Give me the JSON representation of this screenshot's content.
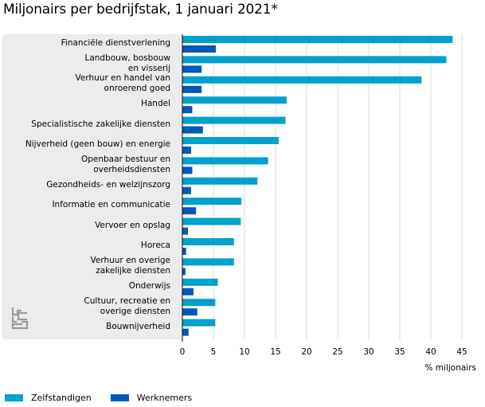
{
  "page": {
    "title": "Miljonairs per bedrijfstak, 1 januari 2021*"
  },
  "chart_data": {
    "type": "bar",
    "orientation": "horizontal",
    "title": "Miljonairs per bedrijfstak, 1 januari 2021*",
    "xlabel": "% miljonairs",
    "ylabel": "",
    "xlim": [
      0,
      45
    ],
    "x_ticks": [
      0,
      5,
      10,
      15,
      20,
      25,
      30,
      35,
      40,
      45
    ],
    "grid": true,
    "legend_position": "bottom-left",
    "categories": [
      "Financiële dienstverlening",
      "Landbouw, bosbouw\nen visserij",
      "Verhuur en handel van\nonroerend goed",
      "Handel",
      "Specialistische zakelijke diensten",
      "Nijverheid (geen bouw) en energie",
      "Openbaar bestuur en\noverheidsdiensten",
      "Gezondheids- en welzijnszorg",
      "Informatie en communicatie",
      "Vervoer en opslag",
      "Horeca",
      "Verhuur en overige\nzakelijke diensten",
      "Onderwijs",
      "Cultuur, recreatie en\noverige diensten",
      "Bouwnijverheid"
    ],
    "series": [
      {
        "name": "Zelfstandigen",
        "color": "#00a1cd",
        "values": [
          43.5,
          42.5,
          38.5,
          16.8,
          16.6,
          15.5,
          13.8,
          12.1,
          9.5,
          9.4,
          8.3,
          8.3,
          5.7,
          5.3,
          5.3
        ]
      },
      {
        "name": "Werknemers",
        "color": "#0058b8",
        "values": [
          5.4,
          3.1,
          3.1,
          1.6,
          3.3,
          1.4,
          1.6,
          1.4,
          2.2,
          0.9,
          0.6,
          0.5,
          1.8,
          2.4,
          1.0
        ]
      }
    ]
  }
}
